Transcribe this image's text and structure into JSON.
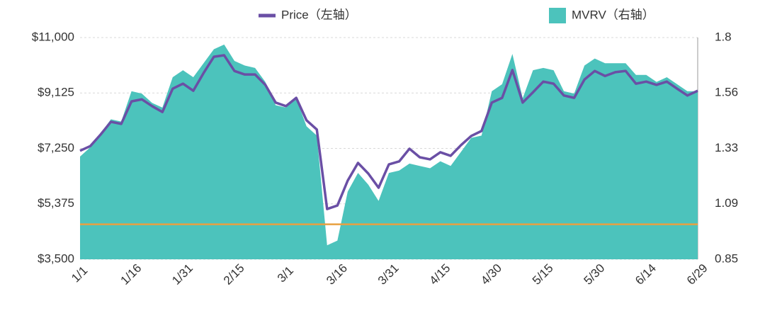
{
  "chart_data": {
    "type": "line-area",
    "categories": [
      "1/1",
      null,
      null,
      null,
      null,
      "1/16",
      null,
      null,
      null,
      null,
      "1/31",
      null,
      null,
      null,
      null,
      "2/15",
      null,
      null,
      null,
      null,
      "3/1",
      null,
      null,
      null,
      null,
      "3/16",
      null,
      null,
      null,
      null,
      "3/31",
      null,
      null,
      null,
      null,
      "4/15",
      null,
      null,
      null,
      null,
      "4/30",
      null,
      null,
      null,
      null,
      "5/15",
      null,
      null,
      null,
      null,
      "5/30",
      null,
      null,
      null,
      null,
      "6/14",
      null,
      null,
      null,
      null,
      "6/29"
    ],
    "series": [
      {
        "name": "Price（左轴）",
        "color": "#6a4fa5",
        "kind": "line",
        "axis": "y",
        "values": [
          7170,
          7330,
          7720,
          8150,
          8080,
          8840,
          8910,
          8680,
          8480,
          9270,
          9440,
          9200,
          9800,
          10350,
          10400,
          9870,
          9750,
          9750,
          9400,
          8800,
          8680,
          8960,
          8200,
          7890,
          5200,
          5320,
          6160,
          6760,
          6400,
          5920,
          6710,
          6810,
          7240,
          6950,
          6880,
          7120,
          7000,
          7360,
          7670,
          7840,
          8800,
          8960,
          9900,
          8800,
          9150,
          9510,
          9440,
          9040,
          8960,
          9580,
          9870,
          9700,
          9830,
          9870,
          9440,
          9510,
          9400,
          9510,
          9270,
          9040,
          9200
        ]
      },
      {
        "name": "MVRV（右轴）",
        "color": "#4cc3bc",
        "kind": "area",
        "axis": "y2",
        "values": [
          1.29,
          1.33,
          1.39,
          1.45,
          1.44,
          1.57,
          1.56,
          1.52,
          1.5,
          1.63,
          1.66,
          1.63,
          1.69,
          1.75,
          1.77,
          1.7,
          1.68,
          1.67,
          1.61,
          1.51,
          1.5,
          1.54,
          1.42,
          1.38,
          0.91,
          0.93,
          1.14,
          1.22,
          1.17,
          1.1,
          1.22,
          1.23,
          1.26,
          1.25,
          1.24,
          1.27,
          1.25,
          1.31,
          1.37,
          1.38,
          1.57,
          1.6,
          1.73,
          1.54,
          1.66,
          1.67,
          1.66,
          1.57,
          1.56,
          1.68,
          1.71,
          1.69,
          1.69,
          1.69,
          1.64,
          1.64,
          1.61,
          1.63,
          1.6,
          1.57,
          1.57
        ]
      }
    ],
    "ylim": [
      3500,
      11000
    ],
    "yticks": [
      {
        "value": 3500,
        "label": "$3,500"
      },
      {
        "value": 5375,
        "label": "$5,375"
      },
      {
        "value": 7250,
        "label": "$7,250"
      },
      {
        "value": 9125,
        "label": "$9,125"
      },
      {
        "value": 11000,
        "label": "$11,000"
      }
    ],
    "y2lim": [
      0.85,
      1.8
    ],
    "y2ticks": [
      0.85,
      {
        "value": 1.0875,
        "label": "1.09"
      },
      {
        "value": 1.325,
        "label": "1.33"
      },
      {
        "value": 1.5625,
        "label": "1.56"
      },
      1.8
    ],
    "reference_line": {
      "value": 1,
      "axis": "y2",
      "color": "#e8a040"
    },
    "grid": true
  }
}
